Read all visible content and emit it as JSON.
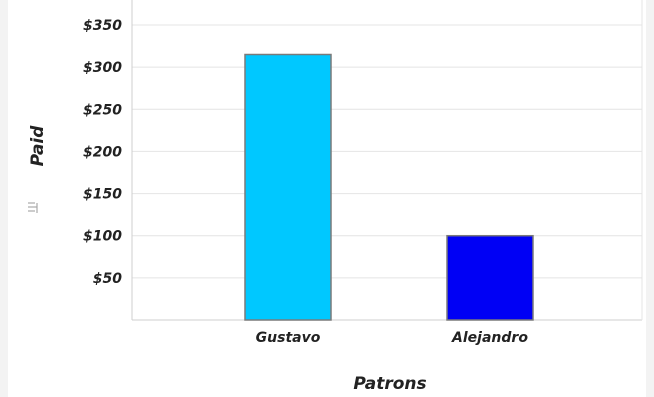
{
  "chart_data": {
    "type": "bar",
    "title": "",
    "xlabel": "Patrons",
    "ylabel": "Paid",
    "categories": [
      "Gustavo",
      "Alejandro"
    ],
    "values": [
      315,
      100
    ],
    "ylim": [
      0,
      350
    ],
    "yticks": [
      "$50",
      "$100",
      "$150",
      "$200",
      "$250",
      "$300",
      "$350"
    ],
    "ytick_values": [
      50,
      100,
      150,
      200,
      250,
      300,
      350
    ],
    "grid": true,
    "bar_colors": [
      "#00c8ff",
      "#0000f5"
    ],
    "bar_border_color": "#7a7a7a"
  },
  "icons": {
    "axis_menu": "sort-icon"
  }
}
